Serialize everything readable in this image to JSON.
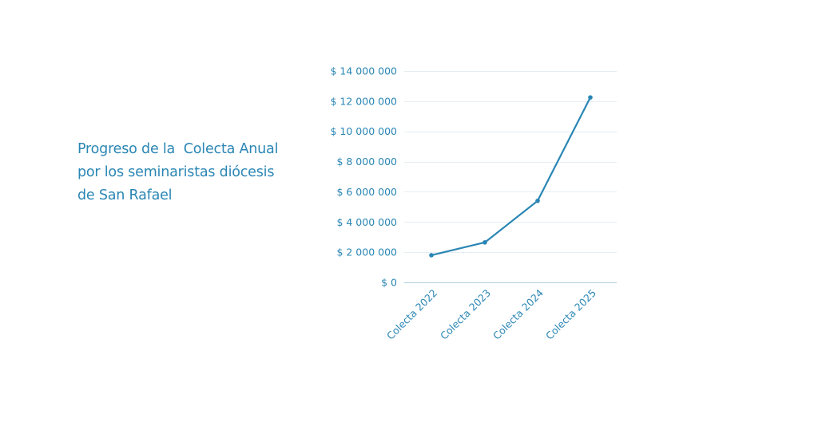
{
  "title_lines": [
    "Progreso de la  Colecta Anual",
    "por los seminaristas diócesis",
    "de San Rafael"
  ],
  "colors": {
    "text": "#2a86b4",
    "line": "#2a86b4",
    "grid": "#e4eef3",
    "axis": "#a9cfe0"
  },
  "chart_data": {
    "type": "line",
    "title": "Progreso de la  Colecta Anual por los seminaristas diócesis de San Rafael",
    "categories": [
      "Colecta 2022",
      "Colecta 2023",
      "Colecta 2024",
      "Colecta 2025"
    ],
    "series": [
      {
        "values": [
          1800000,
          2650000,
          5400000,
          12250000
        ]
      }
    ],
    "yticks": [
      0,
      2000000,
      4000000,
      6000000,
      8000000,
      10000000,
      12000000,
      14000000
    ],
    "ytick_labels": [
      "$ 0",
      "$ 2 000 000",
      "$ 4 000 000",
      "$ 6 000 000",
      "$ 8 000 000",
      "$ 10 000 000",
      "$ 12 000 000",
      "$ 14 000 000"
    ],
    "ylim": [
      0,
      14000000
    ],
    "xlabel": "",
    "ylabel": "",
    "grid": true,
    "legend": "none"
  }
}
